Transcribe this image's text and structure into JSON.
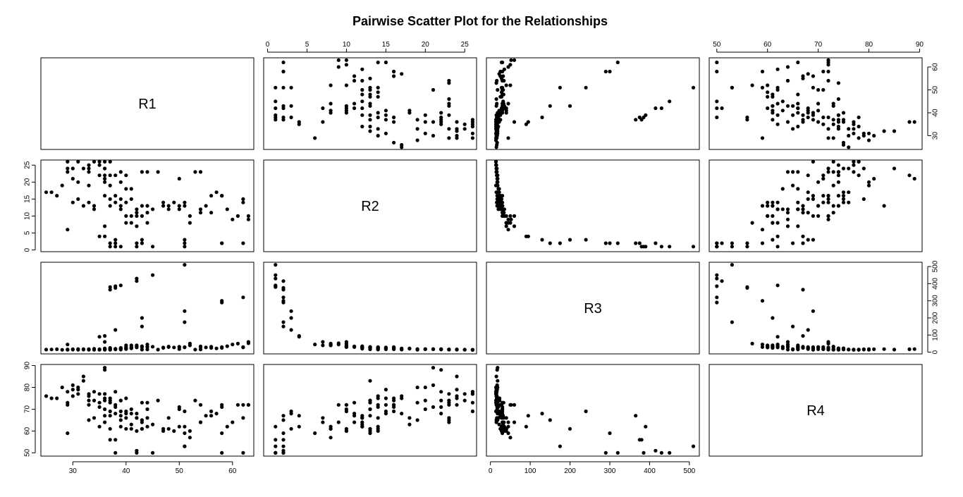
{
  "chart_data": {
    "type": "scatter",
    "kind": "pairs",
    "title": "Pairwise Scatter Plot for the Relationships",
    "variables": [
      "R1",
      "R2",
      "R3",
      "R4"
    ],
    "axes": {
      "R1": {
        "range": [
          24,
          64
        ],
        "ticks": [
          30,
          40,
          50,
          60
        ]
      },
      "R2": {
        "range": [
          -0.5,
          26.5
        ],
        "ticks": [
          0,
          5,
          10,
          15,
          20,
          25
        ]
      },
      "R3": {
        "range": [
          -10,
          525
        ],
        "ticks": [
          0,
          100,
          200,
          300,
          400,
          500
        ]
      },
      "R4": {
        "range": [
          48.5,
          90.5
        ],
        "ticks": [
          50,
          60,
          70,
          80,
          90
        ]
      }
    },
    "marker_color": "#000000",
    "observations": [
      [
        25,
        17,
        15,
        76
      ],
      [
        26,
        17,
        16,
        75
      ],
      [
        27,
        16,
        17,
        75
      ],
      [
        28,
        19,
        14,
        80
      ],
      [
        29,
        6,
        45,
        59
      ],
      [
        29,
        26,
        14,
        78
      ],
      [
        29,
        24,
        15,
        72
      ],
      [
        29,
        23,
        16,
        73
      ],
      [
        30,
        14,
        16,
        76
      ],
      [
        30,
        24,
        15,
        79
      ],
      [
        30,
        21,
        17,
        81
      ],
      [
        31,
        26,
        14,
        77
      ],
      [
        31,
        20,
        18,
        80
      ],
      [
        31,
        15,
        17,
        79
      ],
      [
        32,
        13,
        18,
        83
      ],
      [
        32,
        24,
        15,
        85
      ],
      [
        33,
        25,
        14,
        74
      ],
      [
        33,
        19,
        18,
        65
      ],
      [
        33,
        24,
        16,
        76
      ],
      [
        33,
        23,
        15,
        77
      ],
      [
        33,
        14,
        16,
        72
      ],
      [
        34,
        12,
        20,
        66
      ],
      [
        34,
        26,
        14,
        78
      ],
      [
        34,
        13,
        17,
        74
      ],
      [
        35,
        26,
        14,
        73
      ],
      [
        35,
        22,
        17,
        71
      ],
      [
        35,
        25,
        15,
        77
      ],
      [
        35,
        4,
        90,
        62
      ],
      [
        36,
        26,
        14,
        77
      ],
      [
        36,
        24,
        16,
        75
      ],
      [
        36,
        22,
        17,
        88
      ],
      [
        36,
        21,
        18,
        89
      ],
      [
        36,
        20,
        17,
        70
      ],
      [
        36,
        16,
        22,
        74
      ],
      [
        36,
        7,
        60,
        64
      ],
      [
        36,
        4,
        95,
        67
      ],
      [
        37,
        26,
        14,
        69
      ],
      [
        37,
        22,
        16,
        74
      ],
      [
        37,
        19,
        18,
        73
      ],
      [
        37,
        1,
        380,
        56
      ],
      [
        37,
        15,
        21,
        75
      ],
      [
        37,
        13,
        25,
        61
      ],
      [
        37,
        2,
        365,
        67
      ],
      [
        38,
        22,
        16,
        78
      ],
      [
        38,
        16,
        19,
        72
      ],
      [
        38,
        14,
        20,
        71
      ],
      [
        38,
        2,
        375,
        56
      ],
      [
        38,
        1,
        385,
        50
      ],
      [
        38,
        3,
        130,
        68
      ],
      [
        39,
        23,
        15,
        65
      ],
      [
        39,
        20,
        18,
        74
      ],
      [
        39,
        15,
        22,
        69
      ],
      [
        39,
        12,
        25,
        67
      ],
      [
        39,
        13,
        23,
        74
      ],
      [
        39,
        1,
        390,
        62
      ],
      [
        40,
        22,
        18,
        68
      ],
      [
        40,
        18,
        20,
        66
      ],
      [
        40,
        10,
        30,
        69
      ],
      [
        40,
        8,
        40,
        61
      ],
      [
        40,
        14,
        23,
        75
      ],
      [
        41,
        18,
        22,
        63
      ],
      [
        41,
        15,
        25,
        68
      ],
      [
        41,
        10,
        30,
        70
      ],
      [
        41,
        8,
        40,
        61
      ],
      [
        42,
        12,
        28,
        66
      ],
      [
        42,
        11,
        30,
        68
      ],
      [
        42,
        2,
        415,
        51
      ],
      [
        42,
        1,
        430,
        50
      ],
      [
        42,
        10,
        35,
        60
      ],
      [
        42,
        7,
        40,
        66
      ],
      [
        43,
        23,
        15,
        64
      ],
      [
        43,
        13,
        30,
        73
      ],
      [
        43,
        3,
        200,
        61
      ],
      [
        43,
        2,
        150,
        65
      ],
      [
        43,
        10,
        35,
        61
      ],
      [
        44,
        23,
        16,
        66
      ],
      [
        44,
        13,
        30,
        70
      ],
      [
        44,
        8,
        45,
        62
      ],
      [
        44,
        11,
        33,
        73
      ],
      [
        45,
        1,
        450,
        50
      ],
      [
        45,
        12,
        32,
        63
      ],
      [
        46,
        23,
        15,
        74
      ],
      [
        47,
        13,
        28,
        60
      ],
      [
        47,
        14,
        25,
        61
      ],
      [
        48,
        13,
        30,
        61
      ],
      [
        48,
        12,
        33,
        66
      ],
      [
        49,
        14,
        28,
        60
      ],
      [
        50,
        13,
        30,
        70
      ],
      [
        50,
        12,
        32,
        62
      ],
      [
        50,
        21,
        18,
        71
      ],
      [
        51,
        3,
        240,
        69
      ],
      [
        51,
        1,
        510,
        53
      ],
      [
        51,
        2,
        175,
        53
      ],
      [
        51,
        14,
        28,
        62
      ],
      [
        51,
        13,
        30,
        59
      ],
      [
        52,
        10,
        40,
        60
      ],
      [
        52,
        8,
        50,
        57
      ],
      [
        53,
        23,
        15,
        74
      ],
      [
        54,
        23,
        16,
        72
      ],
      [
        54,
        12,
        30,
        64
      ],
      [
        54,
        11,
        34,
        64
      ],
      [
        55,
        13,
        28,
        67
      ],
      [
        56,
        11,
        32,
        67
      ],
      [
        56,
        16,
        25,
        69
      ],
      [
        57,
        17,
        22,
        68
      ],
      [
        58,
        2,
        300,
        59
      ],
      [
        58,
        2,
        290,
        50
      ],
      [
        58,
        16,
        25,
        72
      ],
      [
        58,
        16,
        30,
        71
      ],
      [
        59,
        12,
        35,
        62
      ],
      [
        60,
        9,
        45,
        64
      ],
      [
        61,
        10,
        50,
        72
      ],
      [
        62,
        14,
        30,
        66
      ],
      [
        62,
        15,
        28,
        72
      ],
      [
        62,
        2,
        320,
        50
      ],
      [
        63,
        9,
        52,
        72
      ],
      [
        63,
        10,
        60,
        72
      ]
    ]
  }
}
